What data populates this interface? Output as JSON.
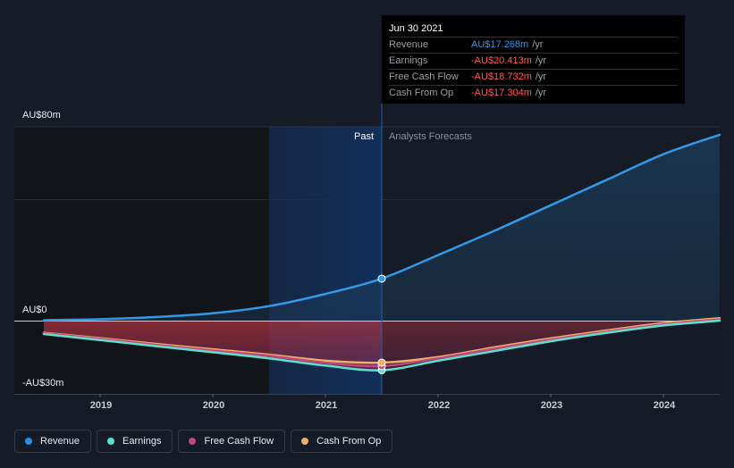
{
  "tooltip": {
    "date": "Jun 30 2021",
    "rows": [
      {
        "label": "Revenue",
        "value": "AU$17.268m",
        "unit": "/yr",
        "color": "#3598e6"
      },
      {
        "label": "Earnings",
        "value": "-AU$20.413m",
        "unit": "/yr",
        "color": "#ff5b5b"
      },
      {
        "label": "Free Cash Flow",
        "value": "-AU$18.732m",
        "unit": "/yr",
        "color": "#ff5b5b"
      },
      {
        "label": "Cash From Op",
        "value": "-AU$17.304m",
        "unit": "/yr",
        "color": "#ff5b5b"
      }
    ]
  },
  "regions": {
    "past": "Past",
    "forecast": "Analysts Forecasts"
  },
  "legend": [
    {
      "label": "Revenue",
      "color": "#2e8fe0"
    },
    {
      "label": "Earnings",
      "color": "#5fe0cf"
    },
    {
      "label": "Free Cash Flow",
      "color": "#c1487c"
    },
    {
      "label": "Cash From Op",
      "color": "#efb06a"
    }
  ],
  "chart_data": {
    "type": "line",
    "y_tick_labels": [
      "AU$80m",
      "AU$0",
      "-AU$30m"
    ],
    "ylim": [
      -30,
      80
    ],
    "xlim": [
      2018.5,
      2024.5
    ],
    "x_tick_labels": [
      "2019",
      "2020",
      "2021",
      "2022",
      "2023",
      "2024"
    ],
    "x_ticks": [
      2019,
      2020,
      2021,
      2022,
      2023,
      2024
    ],
    "past_end": 2021.5,
    "highlight_start": 2020.5,
    "grid": true,
    "legend_position": "bottom-left",
    "series": [
      {
        "name": "Revenue",
        "color": "#3598e6",
        "x": [
          2018.5,
          2019.0,
          2019.5,
          2020.0,
          2020.5,
          2021.0,
          2021.5,
          2022.0,
          2022.5,
          2023.0,
          2023.5,
          2024.0,
          2024.5
        ],
        "y": [
          0.2,
          0.6,
          1.5,
          3.0,
          6.0,
          11.0,
          17.3,
          27.0,
          37.0,
          47.5,
          58.0,
          68.5,
          76.5
        ]
      },
      {
        "name": "Earnings",
        "color": "#5fe0cf",
        "x": [
          2018.5,
          2019.0,
          2019.5,
          2020.0,
          2020.5,
          2021.0,
          2021.5,
          2022.0,
          2022.5,
          2023.0,
          2023.5,
          2024.0,
          2024.5
        ],
        "y": [
          -5.5,
          -8.0,
          -10.5,
          -13.0,
          -15.5,
          -18.5,
          -20.4,
          -16.5,
          -12.5,
          -8.5,
          -5.0,
          -2.0,
          0.0
        ]
      },
      {
        "name": "Free Cash Flow",
        "color": "#c1487c",
        "x": [
          2018.5,
          2019.0,
          2019.5,
          2020.0,
          2020.5,
          2021.0,
          2021.5,
          2022.0,
          2022.5,
          2023.0,
          2023.5,
          2024.0,
          2024.5
        ],
        "y": [
          -5.2,
          -7.5,
          -10.0,
          -12.3,
          -14.5,
          -17.3,
          -18.7,
          -15.5,
          -11.5,
          -7.8,
          -4.5,
          -1.5,
          0.5
        ]
      },
      {
        "name": "Cash From Op",
        "color": "#efb06a",
        "x": [
          2018.5,
          2019.0,
          2019.5,
          2020.0,
          2020.5,
          2021.0,
          2021.5,
          2022.0,
          2022.5,
          2023.0,
          2023.5,
          2024.0,
          2024.5
        ],
        "y": [
          -5.0,
          -7.2,
          -9.6,
          -11.8,
          -14.0,
          -16.5,
          -17.3,
          -15.0,
          -11.0,
          -7.3,
          -4.0,
          -1.0,
          1.0
        ]
      }
    ]
  }
}
